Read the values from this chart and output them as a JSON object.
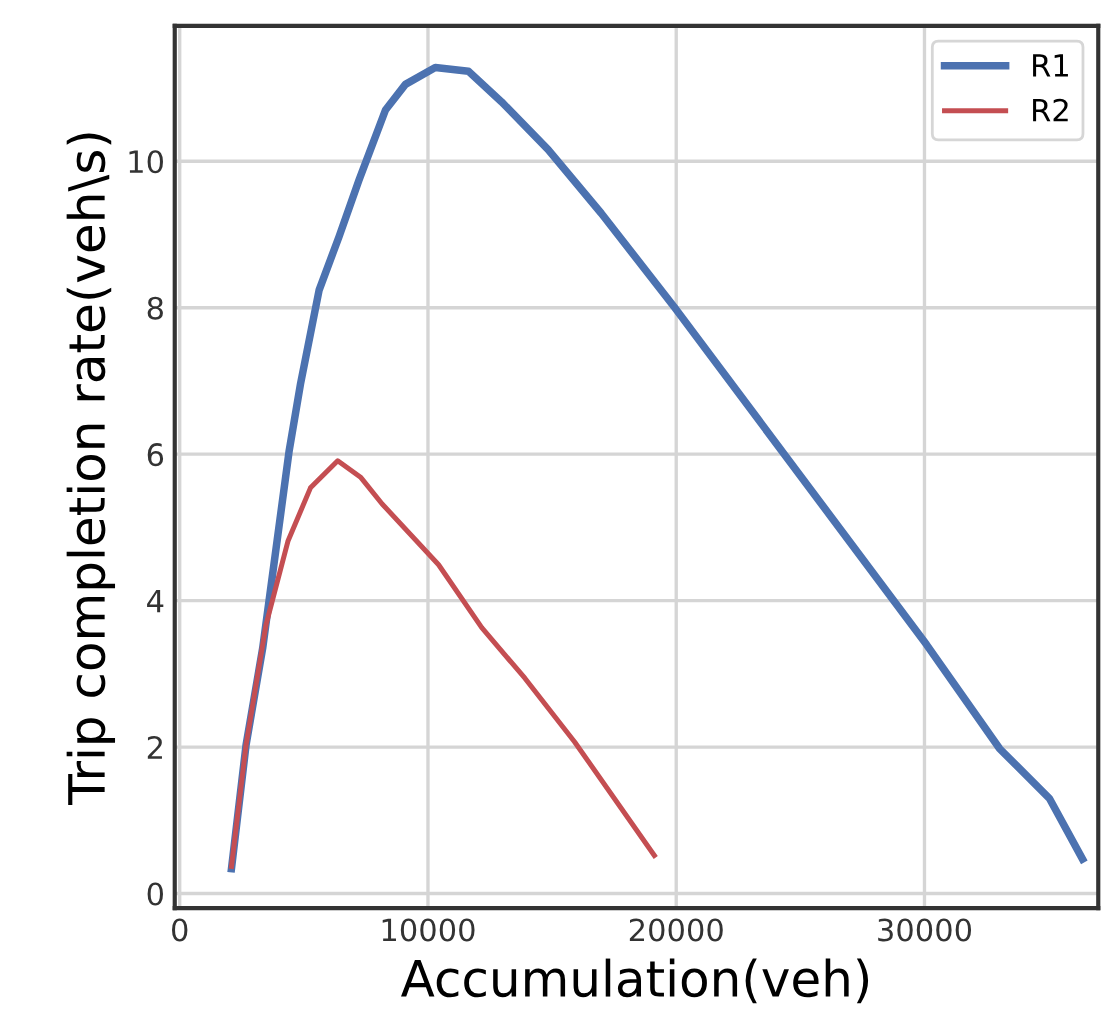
{
  "chart_data": {
    "type": "line",
    "xlabel": "Accumulation(veh)",
    "ylabel": "Trip completion rate(veh\\s)",
    "series": [
      {
        "name": "R1",
        "color": "#4c72b0",
        "x": [
          2085,
          2673,
          3342,
          4410,
          4866,
          5615,
          6417,
          7219,
          8289,
          9091,
          10294,
          11631,
          12968,
          14840,
          16979,
          19920,
          30081,
          33023,
          35029,
          36366
        ],
        "values": [
          0.34,
          2.03,
          3.35,
          6.05,
          6.96,
          8.24,
          8.97,
          9.74,
          10.7,
          11.05,
          11.28,
          11.23,
          10.81,
          10.16,
          9.29,
          8.01,
          3.4,
          1.98,
          1.3,
          0.47
        ]
      },
      {
        "name": "R2",
        "color": "#c44e52",
        "x": [
          2085,
          2673,
          3476,
          4358,
          5267,
          6364,
          7300,
          8155,
          10428,
          12166,
          13904,
          15909,
          19118
        ],
        "values": [
          0.37,
          2.03,
          3.67,
          4.81,
          5.54,
          5.91,
          5.68,
          5.32,
          4.49,
          3.63,
          2.94,
          2.07,
          0.52
        ]
      }
    ],
    "xlim": [
      -200,
      37000
    ],
    "ylim": [
      -0.2,
      11.85
    ],
    "xticks": [
      0,
      10000,
      20000,
      30000
    ],
    "yticks": [
      0,
      2,
      4,
      6,
      8,
      10
    ],
    "grid": true,
    "legend": "top right",
    "marker": "none",
    "line_style": "solid"
  }
}
